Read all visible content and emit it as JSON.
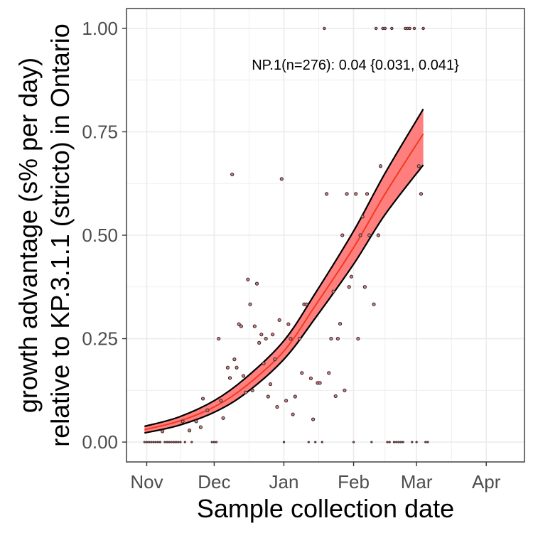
{
  "chart_data": {
    "type": "scatter",
    "title": "",
    "xlabel": "Sample collection date",
    "ylabel_line1": "growth advantage (s% per day)",
    "ylabel_line2": "relative to KP.3.1.1 (stricto) in Ontario",
    "annotation": "NP.1(n=276): 0.04 {0.031, 0.041}",
    "x_axis": {
      "type": "date",
      "range": [
        "2024-10-23",
        "2025-04-18"
      ],
      "ticks": [
        "2024-11-01",
        "2024-12-01",
        "2025-01-01",
        "2025-02-01",
        "2025-03-01",
        "2025-04-01"
      ],
      "tick_labels": [
        "Nov",
        "Dec",
        "Jan",
        "Feb",
        "Mar",
        "Apr"
      ]
    },
    "y_axis": {
      "range": [
        -0.048,
        1.048
      ],
      "ticks": [
        0,
        0.25,
        0.5,
        0.75,
        1
      ],
      "tick_labels": [
        "0.00",
        "0.25",
        "0.50",
        "0.75",
        "1.00"
      ]
    },
    "grid": true,
    "colors": {
      "fit_line": "#f03b20",
      "ribbon_fill": "#ff7f7f",
      "ribbon_edge": "#000000",
      "point_fill": "#c7848a",
      "point_edge": "#3a1d1d",
      "grid": "#ebebeb",
      "panel_border": "#333333"
    },
    "fit": {
      "x": [
        "2024-10-31",
        "2024-11-15",
        "2024-12-01",
        "2024-12-15",
        "2025-01-01",
        "2025-01-15",
        "2025-02-01",
        "2025-02-15",
        "2025-03-04"
      ],
      "y": [
        0.03,
        0.05,
        0.085,
        0.135,
        0.22,
        0.33,
        0.47,
        0.6,
        0.745
      ],
      "lower": [
        0.022,
        0.04,
        0.072,
        0.118,
        0.2,
        0.3,
        0.43,
        0.55,
        0.67
      ],
      "upper": [
        0.038,
        0.06,
        0.1,
        0.155,
        0.245,
        0.36,
        0.51,
        0.65,
        0.805
      ]
    },
    "points": [
      {
        "x": "2024-10-31",
        "y": 0
      },
      {
        "x": "2024-11-01",
        "y": 0
      },
      {
        "x": "2024-11-02",
        "y": 0
      },
      {
        "x": "2024-11-03",
        "y": 0
      },
      {
        "x": "2024-11-04",
        "y": 0
      },
      {
        "x": "2024-11-05",
        "y": 0
      },
      {
        "x": "2024-11-06",
        "y": 0
      },
      {
        "x": "2024-11-07",
        "y": 0
      },
      {
        "x": "2024-11-08",
        "y": 0.026
      },
      {
        "x": "2024-11-09",
        "y": 0
      },
      {
        "x": "2024-11-10",
        "y": 0
      },
      {
        "x": "2024-11-11",
        "y": 0
      },
      {
        "x": "2024-11-12",
        "y": 0
      },
      {
        "x": "2024-11-13",
        "y": 0
      },
      {
        "x": "2024-11-14",
        "y": 0
      },
      {
        "x": "2024-11-15",
        "y": 0
      },
      {
        "x": "2024-11-16",
        "y": 0
      },
      {
        "x": "2024-11-17",
        "y": 0.05
      },
      {
        "x": "2024-11-18",
        "y": 0
      },
      {
        "x": "2024-11-20",
        "y": 0.028
      },
      {
        "x": "2024-11-21",
        "y": 0
      },
      {
        "x": "2024-11-23",
        "y": 0.05
      },
      {
        "x": "2024-11-25",
        "y": 0.036
      },
      {
        "x": "2024-11-26",
        "y": 0.105
      },
      {
        "x": "2024-11-28",
        "y": 0.077
      },
      {
        "x": "2024-11-30",
        "y": 0
      },
      {
        "x": "2024-12-01",
        "y": 0
      },
      {
        "x": "2024-12-02",
        "y": 0
      },
      {
        "x": "2024-12-03",
        "y": 0.25
      },
      {
        "x": "2024-12-04",
        "y": 0.1
      },
      {
        "x": "2024-12-05",
        "y": 0.058
      },
      {
        "x": "2024-12-07",
        "y": 0.18
      },
      {
        "x": "2024-12-08",
        "y": 0.155
      },
      {
        "x": "2024-12-09",
        "y": 0.647
      },
      {
        "x": "2024-12-10",
        "y": 0.2
      },
      {
        "x": "2024-12-11",
        "y": 0.18
      },
      {
        "x": "2024-12-12",
        "y": 0.285
      },
      {
        "x": "2024-12-13",
        "y": 0.28
      },
      {
        "x": "2024-12-14",
        "y": 0.16
      },
      {
        "x": "2024-12-15",
        "y": 0.12
      },
      {
        "x": "2024-12-16",
        "y": 0.393
      },
      {
        "x": "2024-12-17",
        "y": 0.333
      },
      {
        "x": "2024-12-18",
        "y": 0.125
      },
      {
        "x": "2024-12-19",
        "y": 0.28
      },
      {
        "x": "2024-12-20",
        "y": 0.383
      },
      {
        "x": "2024-12-21",
        "y": 0.24
      },
      {
        "x": "2024-12-22",
        "y": 0.26
      },
      {
        "x": "2024-12-23",
        "y": 0.19
      },
      {
        "x": "2024-12-24",
        "y": 0.25
      },
      {
        "x": "2024-12-25",
        "y": 0.11
      },
      {
        "x": "2024-12-26",
        "y": 0.14
      },
      {
        "x": "2024-12-27",
        "y": 0.26
      },
      {
        "x": "2024-12-28",
        "y": 0.2
      },
      {
        "x": "2024-12-29",
        "y": 0.085
      },
      {
        "x": "2024-12-30",
        "y": 0.295
      },
      {
        "x": "2024-12-31",
        "y": 0.636
      },
      {
        "x": "2025-01-01",
        "y": 0
      },
      {
        "x": "2025-01-02",
        "y": 0.1
      },
      {
        "x": "2025-01-03",
        "y": 0.285
      },
      {
        "x": "2025-01-04",
        "y": 0.25
      },
      {
        "x": "2025-01-05",
        "y": 0.067
      },
      {
        "x": "2025-01-06",
        "y": 0.11
      },
      {
        "x": "2025-01-08",
        "y": 0.25
      },
      {
        "x": "2025-01-09",
        "y": 0.167
      },
      {
        "x": "2025-01-10",
        "y": 0.333
      },
      {
        "x": "2025-01-11",
        "y": 0.333
      },
      {
        "x": "2025-01-12",
        "y": 0
      },
      {
        "x": "2025-01-13",
        "y": 0.154
      },
      {
        "x": "2025-01-14",
        "y": 0.055
      },
      {
        "x": "2025-01-15",
        "y": 0
      },
      {
        "x": "2025-01-16",
        "y": 0.143
      },
      {
        "x": "2025-01-17",
        "y": 0.143
      },
      {
        "x": "2025-01-18",
        "y": 0
      },
      {
        "x": "2025-01-19",
        "y": 1
      },
      {
        "x": "2025-01-20",
        "y": 0.6
      },
      {
        "x": "2025-01-21",
        "y": 0.167
      },
      {
        "x": "2025-01-22",
        "y": 0.25
      },
      {
        "x": "2025-01-23",
        "y": 0.364
      },
      {
        "x": "2025-01-24",
        "y": 0.111
      },
      {
        "x": "2025-01-25",
        "y": 0.25
      },
      {
        "x": "2025-01-26",
        "y": 0.286
      },
      {
        "x": "2025-01-27",
        "y": 0.5
      },
      {
        "x": "2025-01-28",
        "y": 0.125
      },
      {
        "x": "2025-01-29",
        "y": 0.6
      },
      {
        "x": "2025-01-30",
        "y": 0.375
      },
      {
        "x": "2025-01-31",
        "y": 0.4
      },
      {
        "x": "2025-02-01",
        "y": 0
      },
      {
        "x": "2025-02-02",
        "y": 0.6
      },
      {
        "x": "2025-02-03",
        "y": 0.25
      },
      {
        "x": "2025-02-04",
        "y": 0.5
      },
      {
        "x": "2025-02-05",
        "y": 0.545
      },
      {
        "x": "2025-02-06",
        "y": 0.375
      },
      {
        "x": "2025-02-07",
        "y": 0.6
      },
      {
        "x": "2025-02-08",
        "y": 0.5
      },
      {
        "x": "2025-02-09",
        "y": 0
      },
      {
        "x": "2025-02-10",
        "y": 0.333
      },
      {
        "x": "2025-02-11",
        "y": 1
      },
      {
        "x": "2025-02-12",
        "y": 0.5
      },
      {
        "x": "2025-02-13",
        "y": 0.667
      },
      {
        "x": "2025-02-14",
        "y": 1
      },
      {
        "x": "2025-02-15",
        "y": 1
      },
      {
        "x": "2025-02-16",
        "y": 0
      },
      {
        "x": "2025-02-17",
        "y": 0
      },
      {
        "x": "2025-02-18",
        "y": 1
      },
      {
        "x": "2025-02-19",
        "y": 0
      },
      {
        "x": "2025-02-20",
        "y": 0
      },
      {
        "x": "2025-02-21",
        "y": 0
      },
      {
        "x": "2025-02-22",
        "y": 0
      },
      {
        "x": "2025-02-23",
        "y": 0
      },
      {
        "x": "2025-02-24",
        "y": 1
      },
      {
        "x": "2025-02-25",
        "y": 1
      },
      {
        "x": "2025-02-26",
        "y": 1
      },
      {
        "x": "2025-02-27",
        "y": 0
      },
      {
        "x": "2025-02-28",
        "y": 1
      },
      {
        "x": "2025-03-01",
        "y": 0
      },
      {
        "x": "2025-03-02",
        "y": 0.667
      },
      {
        "x": "2025-03-03",
        "y": 0.6
      },
      {
        "x": "2025-03-04",
        "y": 1
      },
      {
        "x": "2025-03-05",
        "y": 0
      },
      {
        "x": "2025-03-06",
        "y": 0
      }
    ]
  }
}
